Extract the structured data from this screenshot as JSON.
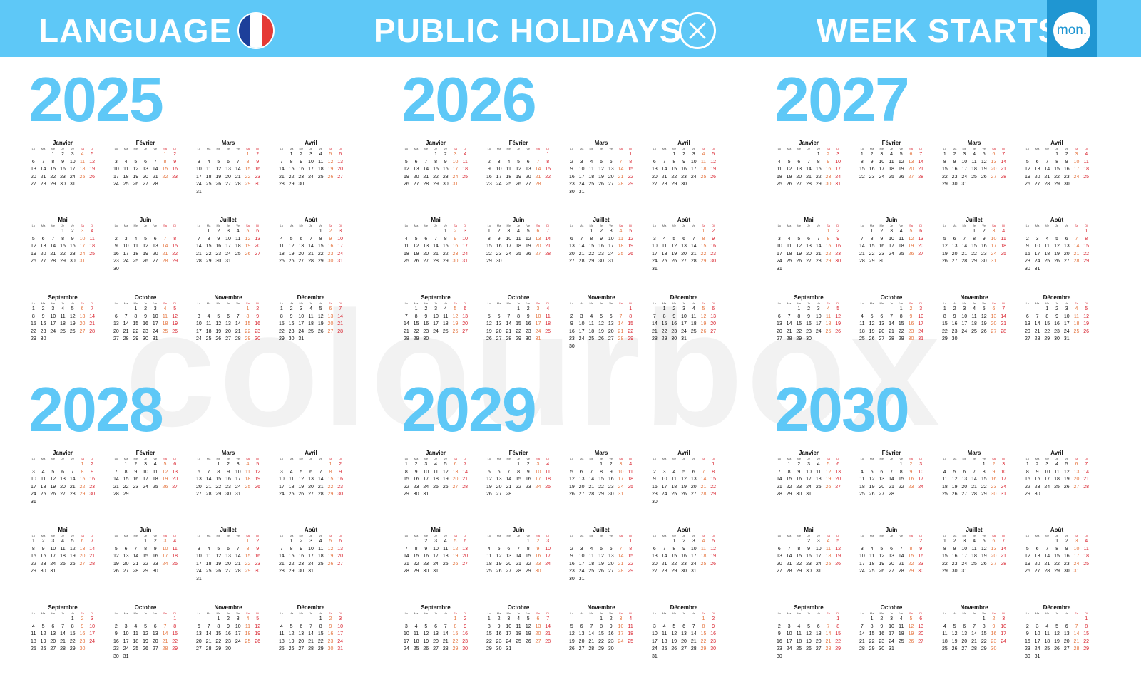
{
  "header": {
    "language_label": "LANGUAGE",
    "language_flag": "french-flag",
    "flag_colors": [
      "#1d3f9a",
      "#ffffff",
      "#e53935"
    ],
    "holidays_label": "PUBLIC HOLIDAYS",
    "holidays_icon": "x-circle-icon",
    "week_label": "WEEK STARTS",
    "week_value": "mon.",
    "bar_color": "#5ec8f7",
    "accent_color": "#1f96d2"
  },
  "watermark": "colourbox",
  "weekday_labels": [
    "Lu",
    "Ma",
    "Me",
    "Je",
    "Ve",
    "Sa",
    "Di"
  ],
  "month_names": [
    "Janvier",
    "Février",
    "Mars",
    "Avril",
    "Mai",
    "Juin",
    "Juillet",
    "Août",
    "Septembre",
    "Octobre",
    "Novembre",
    "Décembre"
  ],
  "colors": {
    "year": "#5ec8f7",
    "saturday": "#e4733d",
    "sunday": "#d81f2a",
    "weekday": "#111111"
  },
  "years": [
    "2025",
    "2026",
    "2027",
    "2028",
    "2029",
    "2030"
  ]
}
